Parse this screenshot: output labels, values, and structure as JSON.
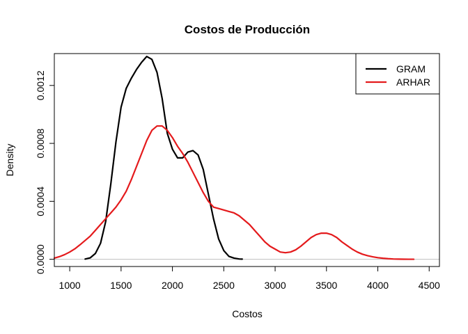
{
  "chart_data": {
    "type": "line",
    "title": "Costos de Producción",
    "xlabel": "Costos",
    "ylabel": "Density",
    "xlim": [
      850,
      4600
    ],
    "ylim": [
      -5e-05,
      0.00142
    ],
    "x_ticks": [
      1000,
      1500,
      2000,
      2500,
      3000,
      3500,
      4000,
      4500
    ],
    "x_tick_labels": [
      "1000",
      "1500",
      "2000",
      "2500",
      "3000",
      "3500",
      "4000",
      "4500"
    ],
    "y_ticks": [
      0,
      0.0004,
      0.0008,
      0.0012
    ],
    "y_tick_labels": [
      "0.0000",
      "0.0004",
      "0.0008",
      "0.0012"
    ],
    "zero_line": true,
    "legend_position": "top-right",
    "series": [
      {
        "name": "GRAM",
        "color": "#000000",
        "x": [
          1150,
          1200,
          1250,
          1300,
          1350,
          1400,
          1450,
          1500,
          1550,
          1600,
          1650,
          1700,
          1750,
          1800,
          1850,
          1900,
          1950,
          2000,
          2050,
          2100,
          2150,
          2200,
          2250,
          2300,
          2350,
          2400,
          2450,
          2500,
          2550,
          2600,
          2650,
          2680
        ],
        "values": [
          1.5e-06,
          1e-05,
          4e-05,
          0.00011,
          0.00026,
          0.00052,
          0.00081,
          0.00105,
          0.00118,
          0.00125,
          0.00131,
          0.00136,
          0.0014,
          0.00138,
          0.00129,
          0.00111,
          0.00087,
          0.00076,
          0.0007,
          0.0007,
          0.00074,
          0.00075,
          0.00072,
          0.00062,
          0.00045,
          0.00028,
          0.00014,
          6e-05,
          2e-05,
          8e-06,
          2e-06,
          1e-06
        ]
      },
      {
        "name": "ARHAR",
        "color": "#e41a1c",
        "x": [
          850,
          900,
          950,
          1000,
          1050,
          1100,
          1150,
          1200,
          1250,
          1300,
          1350,
          1400,
          1450,
          1500,
          1550,
          1600,
          1650,
          1700,
          1750,
          1800,
          1850,
          1900,
          1950,
          2000,
          2050,
          2100,
          2150,
          2200,
          2250,
          2300,
          2350,
          2400,
          2450,
          2500,
          2550,
          2600,
          2650,
          2700,
          2750,
          2800,
          2850,
          2900,
          2950,
          3000,
          3050,
          3100,
          3150,
          3200,
          3250,
          3300,
          3350,
          3400,
          3450,
          3500,
          3550,
          3600,
          3650,
          3700,
          3750,
          3800,
          3850,
          3900,
          3950,
          4000,
          4050,
          4100,
          4150,
          4200,
          4250,
          4300,
          4350
        ],
        "values": [
          8e-06,
          1.8e-05,
          3.2e-05,
          5e-05,
          7.2e-05,
          0.0001,
          0.00013,
          0.00016,
          0.0002,
          0.00024,
          0.00028,
          0.00032,
          0.00036,
          0.00041,
          0.00047,
          0.00055,
          0.00064,
          0.00073,
          0.00082,
          0.00089,
          0.00092,
          0.00092,
          0.00089,
          0.00084,
          0.00078,
          0.00073,
          0.00067,
          0.0006,
          0.00053,
          0.00046,
          0.0004,
          0.00036,
          0.00035,
          0.00034,
          0.00033,
          0.00032,
          0.0003,
          0.00027,
          0.00024,
          0.0002,
          0.00016,
          0.00012,
          9e-05,
          7e-05,
          5e-05,
          4.5e-05,
          5e-05,
          6.5e-05,
          9e-05,
          0.00012,
          0.00015,
          0.00017,
          0.00018,
          0.00018,
          0.00017,
          0.00015,
          0.00012,
          9.5e-05,
          7e-05,
          5e-05,
          3.5e-05,
          2.5e-05,
          1.7e-05,
          1.1e-05,
          7e-06,
          4e-06,
          2e-06,
          1e-06,
          5e-07,
          2e-07,
          1e-07
        ]
      }
    ]
  }
}
